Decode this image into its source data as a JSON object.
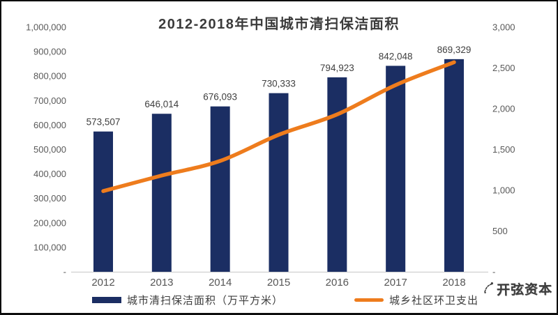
{
  "chart_data": {
    "type": "bar",
    "title": "2012-2018年中国城市清扫保洁面积",
    "categories": [
      "2012",
      "2013",
      "2014",
      "2015",
      "2016",
      "2017",
      "2018"
    ],
    "series": [
      {
        "name": "城市清扫保洁面积（万平方米）",
        "type": "bar",
        "axis": "left",
        "color": "#1b2e63",
        "values": [
          573507,
          646014,
          676093,
          730333,
          794923,
          842048,
          869329
        ],
        "data_labels": [
          "573,507",
          "646,014",
          "676,093",
          "730,333",
          "794,923",
          "842,048",
          "869,329"
        ]
      },
      {
        "name": "城乡社区环卫支出",
        "type": "line",
        "axis": "right",
        "color": "#ee7c1d",
        "values": [
          990,
          1180,
          1360,
          1680,
          1930,
          2290,
          2570
        ]
      }
    ],
    "left_axis": {
      "min": 0,
      "max": 1000000,
      "tick_labels": [
        "1,000,000",
        "900,000",
        "800,000",
        "700,000",
        "600,000",
        "500,000",
        "400,000",
        "300,000",
        "200,000",
        "100,000",
        "-"
      ]
    },
    "right_axis": {
      "min": 0,
      "max": 3000,
      "tick_labels": [
        "3,000",
        "2,500",
        "2,000",
        "1,500",
        "1,000",
        "500",
        "-"
      ]
    },
    "legend_position": "bottom",
    "grid": false
  },
  "watermark": {
    "text": "开弦资本"
  },
  "colors": {
    "bar": "#1b2e63",
    "line": "#ee7c1d",
    "axis_text": "#595959",
    "data_label_text": "#3f3f3f",
    "baseline": "#d6d6d6"
  }
}
